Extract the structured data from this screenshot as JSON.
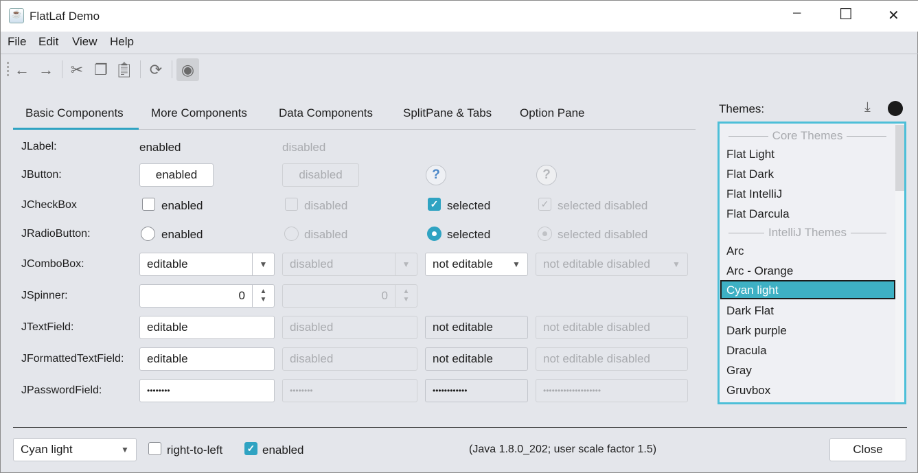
{
  "window": {
    "title": "FlatLaf Demo",
    "minimize": "─",
    "maximize": "☐",
    "close": "✕"
  },
  "menu": [
    "File",
    "Edit",
    "View",
    "Help"
  ],
  "toolbar": {
    "icons": [
      "back-icon",
      "forward-icon",
      "cut-icon",
      "copy-icon",
      "paste-icon",
      "refresh-icon",
      "eye-icon"
    ]
  },
  "tabs": [
    "Basic Components",
    "More Components",
    "Data Components",
    "SplitPane & Tabs",
    "Option Pane"
  ],
  "selected_tab": 0,
  "rows": {
    "label": {
      "label": "JLabel:",
      "enabled": "enabled",
      "disabled": "disabled"
    },
    "button": {
      "label": "JButton:",
      "enabled": "enabled",
      "disabled": "disabled",
      "help": "?"
    },
    "checkbox": {
      "label": "JCheckBox",
      "enabled": "enabled",
      "disabled": "disabled",
      "selected": "selected",
      "selected_disabled": "selected disabled",
      "check": "✓"
    },
    "radio": {
      "label": "JRadioButton:",
      "enabled": "enabled",
      "disabled": "disabled",
      "selected": "selected",
      "selected_disabled": "selected disabled"
    },
    "combo": {
      "label": "JComboBox:",
      "editable": "editable",
      "disabled": "disabled",
      "not_editable": "not editable",
      "not_editable_disabled": "not editable disabled"
    },
    "spinner": {
      "label": "JSpinner:",
      "value": "0",
      "disabled_value": "0"
    },
    "textfield": {
      "label": "JTextField:",
      "editable": "editable",
      "disabled": "disabled",
      "not_editable": "not editable",
      "not_editable_disabled": "not editable disabled"
    },
    "formatted": {
      "label": "JFormattedTextField:",
      "editable": "editable",
      "disabled": "disabled",
      "not_editable": "not editable",
      "not_editable_disabled": "not editable disabled"
    },
    "password": {
      "label": "JPasswordField:",
      "editable": "••••••••",
      "disabled": "••••••••",
      "not_editable": "••••••••••••",
      "not_editable_disabled": "••••••••••••••••••••"
    }
  },
  "themes": {
    "label": "Themes:",
    "headers": [
      "Core Themes",
      "IntelliJ Themes"
    ],
    "core": [
      "Flat Light",
      "Flat Dark",
      "Flat IntelliJ",
      "Flat Darcula"
    ],
    "intellij": [
      "Arc",
      "Arc - Orange",
      "Cyan light",
      "Dark Flat",
      "Dark purple",
      "Dracula",
      "Gray",
      "Gruvbox"
    ],
    "selected": "Cyan light"
  },
  "bottom": {
    "theme_combo": "Cyan light",
    "rtl": "right-to-left",
    "rtl_checked": false,
    "enabled": "enabled",
    "enabled_checked": true,
    "info": "(Java 1.8.0_202;  user scale factor 1.5)",
    "close": "Close"
  },
  "colors": {
    "accent": "#2fa3c2",
    "selection": "#3eb0c4",
    "list_border": "#4dbfd8",
    "background": "#e4e6eb"
  }
}
